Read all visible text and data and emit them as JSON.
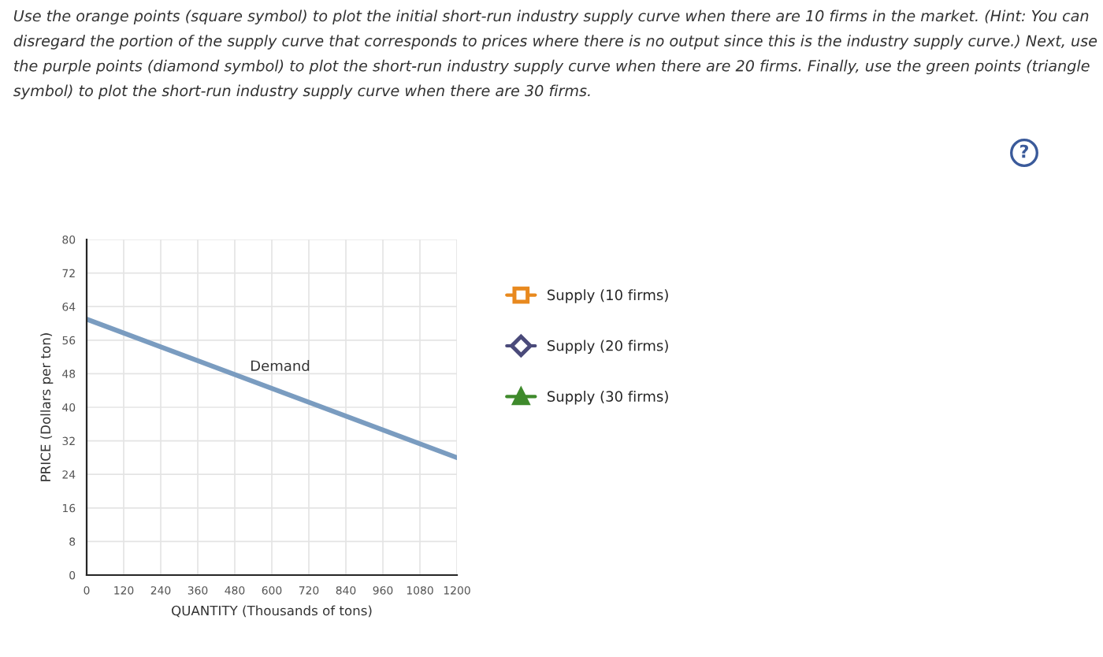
{
  "chart_data": {
    "type": "line",
    "title": "Use the orange points (square symbol) to plot the initial short-run industry supply curve when there are 10 firms in the market. (Hint: You can disregard the portion of the supply curve that corresponds to prices where there is no output since this is the industry supply curve.) Next, use the purple points (diamond symbol) to plot the short-run industry supply curve when there are 20 firms. Finally, use the green points (triangle symbol) to plot the short-run industry supply curve when there are 30 firms.",
    "xlabel": "QUANTITY (Thousands of tons)",
    "ylabel": "PRICE (Dollars per ton)",
    "series": [
      {
        "name": "Demand",
        "color": "#7a9cc0",
        "x": [
          0,
          1200
        ],
        "values": [
          61,
          28
        ],
        "marker": "none"
      },
      {
        "name": "Supply (10 firms)",
        "color": "#e8891e",
        "marker": "square"
      },
      {
        "name": "Supply (20 firms)",
        "color": "#4a4a7a",
        "marker": "diamond"
      },
      {
        "name": "Supply (30 firms)",
        "color": "#3f8a2c",
        "marker": "triangle"
      }
    ],
    "xlim": [
      0,
      1200
    ],
    "xticks": [
      0,
      120,
      240,
      360,
      480,
      600,
      720,
      840,
      960,
      1080,
      1200
    ],
    "ylim": [
      0,
      80
    ],
    "yticks": [
      0,
      8,
      16,
      24,
      32,
      40,
      48,
      56,
      64,
      72,
      80
    ],
    "grid": true,
    "legend": "right",
    "line_style": "solid",
    "annotations": [
      "?"
    ]
  }
}
